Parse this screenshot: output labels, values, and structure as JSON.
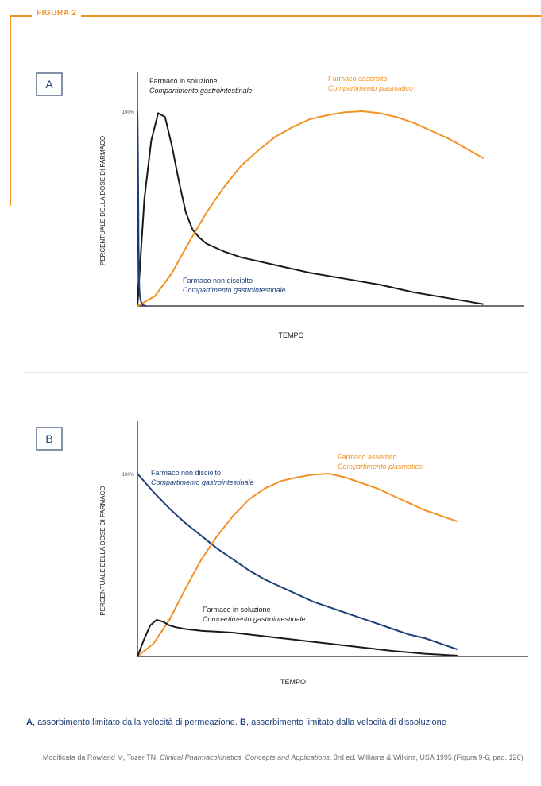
{
  "figure_label": "FIGURA 2",
  "colors": {
    "accent": "#f39224",
    "blue": "#1d3f77",
    "black": "#1a1a1a"
  },
  "chart_data": [
    {
      "type": "line",
      "panel_label": "A",
      "xlabel": "TEMPO",
      "ylabel": "PERCENTUALE DELLA DOSE DI FARMACO",
      "y_tick_label": "100%",
      "ylim": [
        0,
        100
      ],
      "xlim": [
        0,
        100
      ],
      "grid": false,
      "series": [
        {
          "key": "sol",
          "label": "Farmaco in soluzione",
          "sublabel": "Compartimento gastrointestinale",
          "color": "#1a1a1a",
          "x": [
            0,
            2,
            4,
            6,
            8,
            10,
            12,
            14,
            16,
            18,
            20,
            25,
            30,
            40,
            50,
            60,
            70,
            80,
            90,
            100
          ],
          "y": [
            0,
            55,
            85,
            99,
            97,
            82,
            64,
            48,
            39,
            35,
            32,
            28,
            25,
            21,
            17,
            14,
            11,
            7,
            4,
            1
          ]
        },
        {
          "key": "abs",
          "label": "Farmaco assorbito",
          "sublabel": "Compartimento plasmatico",
          "color": "#f39224",
          "x": [
            0,
            5,
            10,
            15,
            20,
            25,
            30,
            35,
            40,
            45,
            50,
            55,
            60,
            65,
            70,
            75,
            80,
            85,
            90,
            95,
            100
          ],
          "y": [
            0,
            5,
            17,
            33,
            48,
            61,
            72,
            80,
            87,
            92,
            96,
            98,
            99.5,
            100,
            99,
            97,
            94,
            90,
            86,
            81,
            76
          ]
        },
        {
          "key": "undis",
          "label": "Farmaco non disciolto",
          "sublabel": "Compartimento gastrointestinale",
          "color": "#1d3f77",
          "x": [
            0,
            0.5,
            1,
            1.5,
            2,
            2.5,
            3,
            3.5,
            4,
            5,
            6,
            7,
            8,
            10,
            12,
            15
          ],
          "y": [
            100,
            92,
            75,
            52,
            32,
            20,
            13,
            9,
            6,
            4,
            2.5,
            1.7,
            1,
            0.5,
            0.2,
            0
          ]
        }
      ]
    },
    {
      "type": "line",
      "panel_label": "B",
      "xlabel": "TEMPO",
      "ylabel": "PERCENTUALE DELLA DOSE DI FARMACO",
      "y_tick_label": "100%",
      "ylim": [
        0,
        100
      ],
      "xlim": [
        0,
        100
      ],
      "grid": false,
      "series": [
        {
          "key": "undis",
          "label": "Farmaco non disciolto",
          "sublabel": "Compartimento gastrointestinale",
          "color": "#1d3f77",
          "x": [
            0,
            5,
            10,
            15,
            20,
            25,
            30,
            35,
            40,
            45,
            50,
            55,
            60,
            65,
            70,
            75,
            80,
            85,
            90,
            95,
            100
          ],
          "y": [
            100,
            90,
            81,
            73,
            66,
            59,
            53,
            47,
            42,
            38,
            34,
            30,
            27,
            24,
            21,
            18,
            15,
            12,
            10,
            7,
            4
          ]
        },
        {
          "key": "abs",
          "label": "Farmaco assorbito",
          "sublabel": "Compartimento plasmatico",
          "color": "#f39224",
          "x": [
            0,
            5,
            10,
            15,
            20,
            25,
            30,
            35,
            40,
            45,
            50,
            55,
            60,
            65,
            70,
            75,
            80,
            85,
            90,
            95,
            100
          ],
          "y": [
            0,
            7,
            20,
            37,
            53,
            66,
            77,
            86,
            92,
            96,
            98,
            99.5,
            100,
            98,
            95,
            92,
            88,
            84,
            80,
            77,
            74
          ]
        },
        {
          "key": "sol",
          "label": "Farmaco in soluzione",
          "sublabel": "Compartimento gastrointestinale",
          "color": "#1a1a1a",
          "x": [
            0,
            2,
            4,
            6,
            8,
            10,
            12,
            15,
            20,
            25,
            30,
            35,
            40,
            50,
            60,
            70,
            80,
            90,
            100
          ],
          "y": [
            0,
            9,
            17,
            20,
            19,
            17,
            16,
            15,
            14,
            13.5,
            13,
            12,
            11,
            9,
            7,
            5,
            3,
            1.5,
            0.5
          ]
        }
      ]
    }
  ],
  "caption": {
    "a_label": "A",
    "a_text": ", assorbimento limitato dalla velocità di permeazione. ",
    "b_label": "B",
    "b_text": ", assorbimento limitato dalla velocità di dissoluzione"
  },
  "source": {
    "prefix": "Modificata da Rowland M, Tozer TN. ",
    "title": "Clinical Pharmacokinetics. Concepts and Applications",
    "suffix": ". 3rd ed. Williams & Wilkins, USA 1995 (Figura 9-6, pag. 126)."
  }
}
